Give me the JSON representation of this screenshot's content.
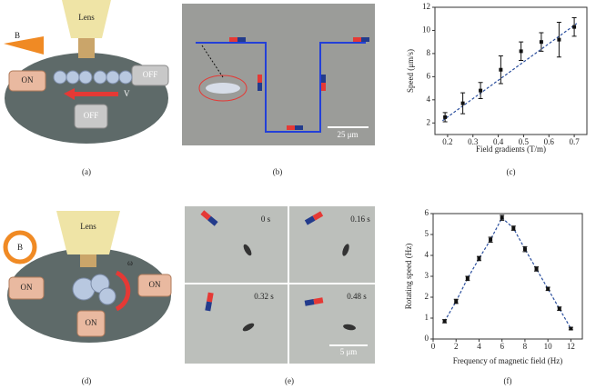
{
  "chart_data": [
    {
      "type": "scatter",
      "panel_label": "(c)",
      "xlabel": "Field gradients (T/m)",
      "ylabel": "Speed (μm/s)",
      "x": [
        0.19,
        0.26,
        0.33,
        0.41,
        0.49,
        0.57,
        0.64,
        0.7
      ],
      "series": [
        {
          "color": "#111111",
          "values": [
            2.5,
            3.7,
            4.8,
            6.6,
            8.2,
            9.0,
            9.2,
            10.3
          ],
          "errors": [
            0.4,
            0.9,
            0.7,
            1.2,
            0.8,
            0.8,
            1.5,
            0.8
          ]
        }
      ],
      "fit": {
        "x": [
          0.18,
          0.71
        ],
        "values": [
          2.2,
          10.6
        ],
        "color": "#2b4f9e"
      },
      "xlim": [
        0.15,
        0.75
      ],
      "xticks": [
        0.2,
        0.3,
        0.4,
        0.5,
        0.6,
        0.7
      ],
      "ylim": [
        1,
        12
      ],
      "yticks": [
        2,
        4,
        6,
        8,
        10,
        12
      ]
    },
    {
      "type": "line",
      "panel_label": "(f)",
      "xlabel": "Frequency of magnetic field (Hz)",
      "ylabel": "Rotating speed (Hz)",
      "x": [
        1,
        2,
        3,
        4,
        5,
        6,
        7,
        8,
        9,
        10,
        11,
        12
      ],
      "series": [
        {
          "color": "#2b4f9e",
          "values": [
            0.85,
            1.8,
            2.9,
            3.85,
            4.75,
            5.8,
            5.3,
            4.3,
            3.35,
            2.4,
            1.45,
            0.5
          ],
          "errors": [
            0.08,
            0.1,
            0.1,
            0.1,
            0.12,
            0.12,
            0.1,
            0.12,
            0.1,
            0.08,
            0.08,
            0.06
          ]
        }
      ],
      "xlim": [
        0,
        13
      ],
      "xticks": [
        0,
        2,
        4,
        6,
        8,
        10,
        12
      ],
      "ylim": [
        0,
        6
      ],
      "yticks": [
        0,
        1,
        2,
        3,
        4,
        5,
        6
      ]
    }
  ],
  "panel_a": {
    "lens": "Lens",
    "field": "B",
    "coil_left": "ON",
    "coil_right": "OFF",
    "coil_bottom": "OFF",
    "velocity": "V",
    "label": "(a)"
  },
  "panel_b": {
    "scale": "25 μm",
    "label": "(b)"
  },
  "panel_d": {
    "lens": "Lens",
    "field": "B",
    "coil_left": "ON",
    "coil_right": "ON",
    "coil_bottom": "ON",
    "omega": "ω",
    "label": "(d)"
  },
  "panel_e": {
    "times": [
      "0 s",
      "0.16 s",
      "0.32 s",
      "0.48 s"
    ],
    "scale": "5 μm",
    "label": "(e)"
  }
}
